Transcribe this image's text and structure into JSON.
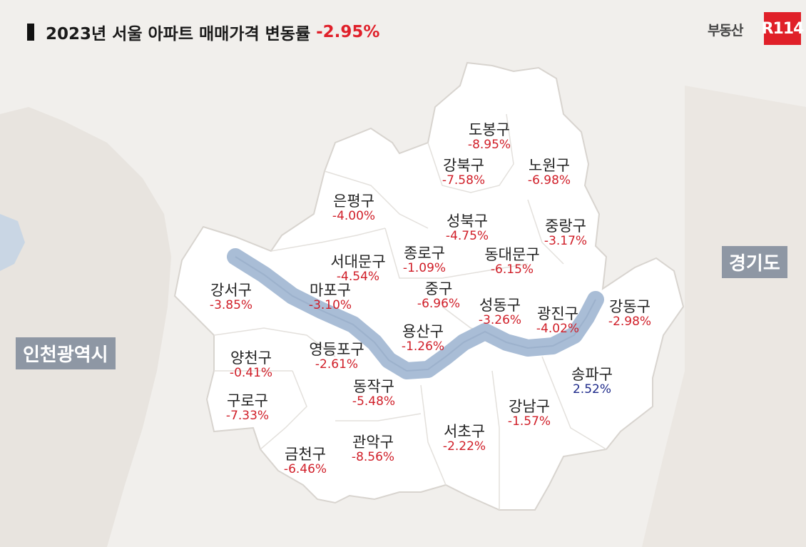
{
  "title": {
    "text": "2023년 서울 아파트 매매가격 변동률",
    "rate": "-2.95%"
  },
  "logo": {
    "text": "부동산",
    "badge": "R114"
  },
  "regions": {
    "gyeonggi": "경기도",
    "incheon": "인천광역시"
  },
  "colors": {
    "decrease": "#d01e28",
    "increase": "#1e2a8a",
    "river": "#a9bdd6",
    "land": "#ffffff"
  },
  "districts": [
    {
      "name": "도봉구",
      "change": "-8.95%"
    },
    {
      "name": "강북구",
      "change": "-7.58%"
    },
    {
      "name": "노원구",
      "change": "-6.98%"
    },
    {
      "name": "은평구",
      "change": "-4.00%"
    },
    {
      "name": "성북구",
      "change": "-4.75%"
    },
    {
      "name": "중랑구",
      "change": "-3.17%"
    },
    {
      "name": "종로구",
      "change": "-1.09%"
    },
    {
      "name": "서대문구",
      "change": "-4.54%"
    },
    {
      "name": "동대문구",
      "change": "-6.15%"
    },
    {
      "name": "마포구",
      "change": "-3.10%"
    },
    {
      "name": "중구",
      "change": "-6.96%"
    },
    {
      "name": "강서구",
      "change": "-3.85%"
    },
    {
      "name": "성동구",
      "change": "-3.26%"
    },
    {
      "name": "광진구",
      "change": "-4.02%"
    },
    {
      "name": "강동구",
      "change": "-2.98%"
    },
    {
      "name": "용산구",
      "change": "-1.26%"
    },
    {
      "name": "영등포구",
      "change": "-2.61%"
    },
    {
      "name": "양천구",
      "change": "-0.41%"
    },
    {
      "name": "송파구",
      "change": "2.52%"
    },
    {
      "name": "동작구",
      "change": "-5.48%"
    },
    {
      "name": "구로구",
      "change": "-7.33%"
    },
    {
      "name": "강남구",
      "change": "-1.57%"
    },
    {
      "name": "서초구",
      "change": "-2.22%"
    },
    {
      "name": "관악구",
      "change": "-8.56%"
    },
    {
      "name": "금천구",
      "change": "-6.46%"
    }
  ]
}
